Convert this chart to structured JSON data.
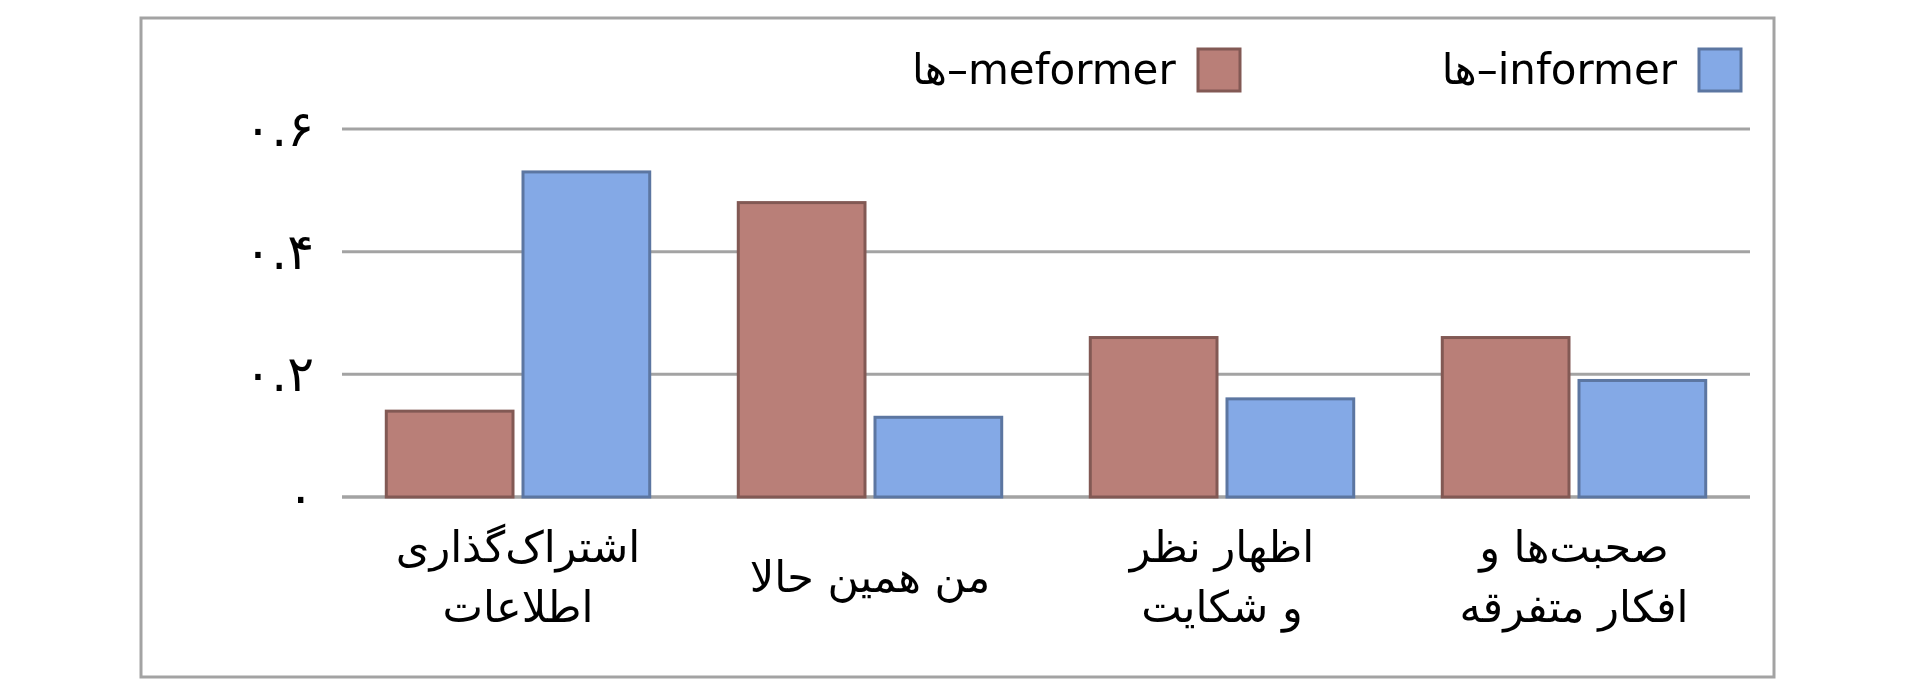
{
  "chart_data": {
    "type": "bar",
    "categories": [
      "اشتراک‌گذاری اطلاعات",
      "من همین حالا",
      "اظهار نظر و شکایت",
      "صحبت‌ها و افکار متفرقه"
    ],
    "series": [
      {
        "name": "meformer–ها",
        "color": "#b97f78",
        "values": [
          0.14,
          0.48,
          0.26,
          0.26
        ]
      },
      {
        "name": "informer–ها",
        "color": "#84a9e6",
        "values": [
          0.53,
          0.13,
          0.16,
          0.19
        ]
      }
    ],
    "ylim": [
      0,
      0.6
    ],
    "yticks": [
      {
        "value": 0,
        "label": "۰"
      },
      {
        "value": 0.2,
        "label": "۰.۲"
      },
      {
        "value": 0.4,
        "label": "۰.۴"
      },
      {
        "value": 0.6,
        "label": "۰.۶"
      }
    ],
    "grid": "y",
    "legend": "top right"
  }
}
